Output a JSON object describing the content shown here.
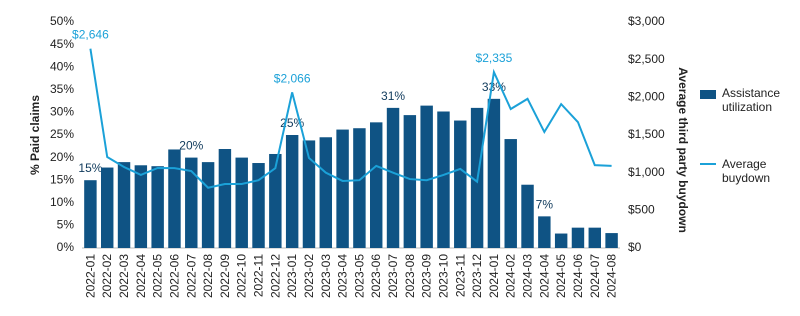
{
  "chart_data": {
    "type": "bar_line",
    "y_label": "% Paid claims",
    "y2_label": "Average third party buydown",
    "categories": [
      "2022-01",
      "2022-02",
      "2022-03",
      "2022-04",
      "2022-05",
      "2022-06",
      "2022-07",
      "2022-08",
      "2022-09",
      "2022-10",
      "2022-11",
      "2022-12",
      "2023-01",
      "2023-02",
      "2023-03",
      "2023-04",
      "2023-05",
      "2023-06",
      "2023-07",
      "2023-08",
      "2023-09",
      "2023-10",
      "2023-11",
      "2023-12",
      "2024-01",
      "2024-02",
      "2024-03",
      "2024-04",
      "2024-05",
      "2024-06",
      "2024-07",
      "2024-08"
    ],
    "series": [
      {
        "name": "Assistance utilization",
        "type": "bar",
        "color": "#0f5384",
        "values": [
          15,
          17.8,
          19,
          18.3,
          18.1,
          21.8,
          20,
          19,
          21.9,
          20,
          18.8,
          20.8,
          25,
          23.8,
          24.5,
          26.2,
          26.5,
          27.8,
          31,
          29.4,
          31.5,
          30.2,
          28.2,
          31,
          33,
          24.1,
          14,
          7,
          3.2,
          4.5,
          4.5,
          3.3
        ],
        "value_labels": [
          "15%",
          null,
          null,
          null,
          null,
          null,
          "20%",
          null,
          null,
          null,
          null,
          null,
          "25%",
          null,
          null,
          null,
          null,
          null,
          "31%",
          null,
          null,
          null,
          null,
          null,
          "33%",
          null,
          null,
          "7%",
          null,
          null,
          null,
          null
        ]
      },
      {
        "name": "Average buydown",
        "type": "line",
        "axis": "y2",
        "color": "#1ba1d8",
        "values": [
          2646,
          1208,
          1075,
          970,
          1062,
          1060,
          1022,
          800,
          850,
          850,
          900,
          1060,
          2066,
          1195,
          1000,
          890,
          900,
          1090,
          1000,
          915,
          900,
          970,
          1050,
          880,
          2335,
          1845,
          1980,
          1540,
          1910,
          1670,
          1100,
          1090
        ],
        "value_labels": [
          "$2,646",
          null,
          null,
          null,
          null,
          null,
          null,
          null,
          null,
          null,
          null,
          null,
          "$2,066",
          null,
          null,
          null,
          null,
          null,
          null,
          null,
          null,
          null,
          null,
          null,
          "$2,335",
          null,
          null,
          null,
          null,
          null,
          null,
          null
        ]
      }
    ],
    "ylim": [
      0,
      50
    ],
    "yticks": [
      {
        "value": 0,
        "label": "0%"
      },
      {
        "value": 5,
        "label": "5%"
      },
      {
        "value": 10,
        "label": "10%"
      },
      {
        "value": 15,
        "label": "15%"
      },
      {
        "value": 20,
        "label": "20%"
      },
      {
        "value": 25,
        "label": "25%"
      },
      {
        "value": 30,
        "label": "30%"
      },
      {
        "value": 35,
        "label": "35%"
      },
      {
        "value": 40,
        "label": "40%"
      },
      {
        "value": 45,
        "label": "45%"
      },
      {
        "value": 50,
        "label": "50%"
      }
    ],
    "y2lim": [
      0,
      3000
    ],
    "y2ticks": [
      {
        "value": 0,
        "label": "$0"
      },
      {
        "value": 500,
        "label": "$500"
      },
      {
        "value": 1000,
        "label": "$1,000"
      },
      {
        "value": 1500,
        "label": "$1,500"
      },
      {
        "value": 2000,
        "label": "$2,000"
      },
      {
        "value": 2500,
        "label": "$2,500"
      },
      {
        "value": 3000,
        "label": "$3,000"
      }
    ],
    "grid": false,
    "legend": "right"
  }
}
